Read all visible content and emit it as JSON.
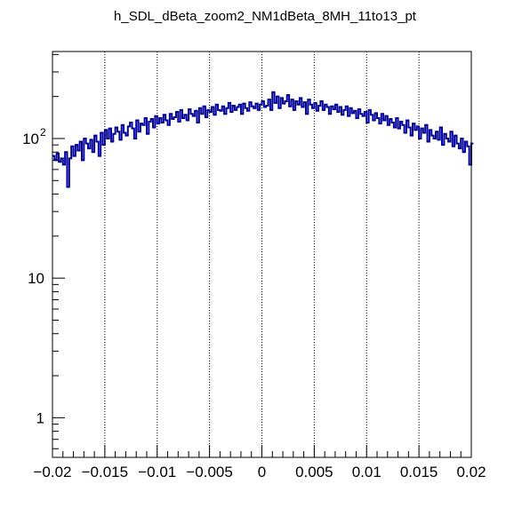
{
  "title": "h_SDL_dBeta_zoom2_NM1dBeta_8MH_11to13_pt",
  "chart_data": {
    "type": "line",
    "style": "step-histogram",
    "title": "h_SDL_dBeta_zoom2_NM1dBeta_8MH_11to13_pt",
    "xlabel": "",
    "ylabel": "",
    "xlim": [
      -0.02,
      0.02
    ],
    "ylim": [
      0.52,
      420
    ],
    "yscale": "log",
    "grid": "x-dotted",
    "line_color": "#000099",
    "x_ticks": [
      {
        "v": -0.02,
        "label": "−0.02"
      },
      {
        "v": -0.015,
        "label": "−0.015"
      },
      {
        "v": -0.01,
        "label": "−0.01"
      },
      {
        "v": -0.005,
        "label": "−0.005"
      },
      {
        "v": 0,
        "label": "0"
      },
      {
        "v": 0.005,
        "label": "0.005"
      },
      {
        "v": 0.01,
        "label": "0.01"
      },
      {
        "v": 0.015,
        "label": "0.015"
      },
      {
        "v": 0.02,
        "label": "0.02"
      }
    ],
    "y_ticks": [
      {
        "v": 1,
        "label": "1"
      },
      {
        "v": 10,
        "label": "10"
      },
      {
        "v": 100,
        "label": "10",
        "exp": "2"
      }
    ],
    "bin_low": -0.02,
    "bin_width": 0.0002,
    "values": [
      75,
      70,
      78,
      68,
      72,
      65,
      80,
      45,
      72,
      88,
      75,
      90,
      82,
      95,
      70,
      100,
      92,
      85,
      98,
      80,
      105,
      95,
      75,
      110,
      90,
      115,
      100,
      118,
      95,
      108,
      120,
      112,
      98,
      125,
      110,
      105,
      122,
      130,
      118,
      100,
      135,
      112,
      128,
      125,
      140,
      108,
      132,
      138,
      120,
      145,
      128,
      140,
      130,
      148,
      135,
      125,
      150,
      138,
      142,
      155,
      132,
      160,
      140,
      148,
      135,
      162,
      150,
      145,
      158,
      130,
      165,
      150,
      170,
      142,
      160,
      155,
      168,
      148,
      175,
      160,
      158,
      170,
      150,
      165,
      180,
      155,
      172,
      160,
      168,
      175,
      150,
      178,
      165,
      158,
      182,
      170,
      165,
      178,
      160,
      175,
      185,
      168,
      172,
      190,
      160,
      215,
      180,
      200,
      165,
      195,
      178,
      185,
      205,
      170,
      190,
      160,
      185,
      175,
      195,
      168,
      182,
      150,
      190,
      175,
      165,
      180,
      158,
      172,
      185,
      160,
      175,
      168,
      150,
      170,
      162,
      175,
      155,
      168,
      148,
      160,
      170,
      145,
      165,
      152,
      158,
      140,
      162,
      150,
      145,
      155,
      130,
      160,
      148,
      135,
      152,
      140,
      128,
      150,
      135,
      145,
      125,
      138,
      130,
      120,
      140,
      118,
      132,
      125,
      110,
      135,
      120,
      105,
      128,
      115,
      122,
      100,
      118,
      110,
      125,
      95,
      115,
      105,
      100,
      112,
      98,
      120,
      90,
      108,
      100,
      95,
      112,
      88,
      105,
      92,
      85,
      100,
      80,
      95,
      88,
      65,
      92
    ]
  }
}
